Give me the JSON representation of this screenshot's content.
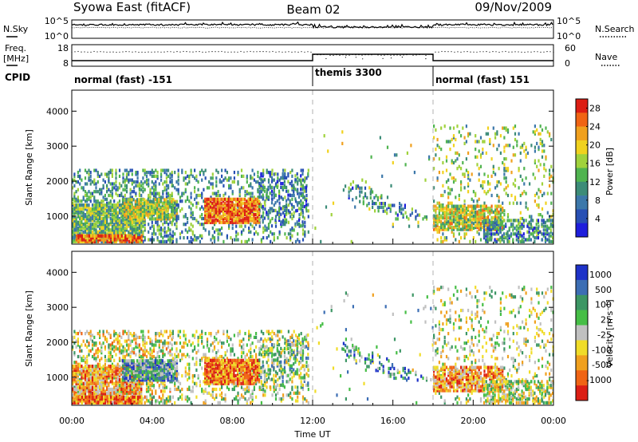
{
  "header": {
    "station": "Syowa East (fitACF)",
    "beam": "Beam 02",
    "date": "09/Nov/2009"
  },
  "top_panels": {
    "nsky_label": "N.Sky",
    "nsearch_label": "N.Search",
    "freq_label_line1": "Freq.",
    "freq_label_line2": "[MHz]",
    "nave_label": "Nave",
    "cpid_label": "CPID",
    "noise_ticks": [
      "10^5",
      "10^0"
    ],
    "freq_ticks": [
      "18",
      "8"
    ],
    "nave_ticks": [
      "60",
      "0"
    ]
  },
  "cpid_segments": [
    {
      "start": 0,
      "end": 12,
      "label": "normal (fast) -151"
    },
    {
      "start": 12,
      "end": 18,
      "label": "themis 3300"
    },
    {
      "start": 18,
      "end": 24,
      "label": "normal (fast) 151"
    }
  ],
  "colors": {
    "power_scale": [
      "#1e1edc",
      "#2850b4",
      "#3c78aa",
      "#3c8c78",
      "#50b450",
      "#a0d23c",
      "#f0d21e",
      "#f0a01e",
      "#f06414",
      "#dc1e14"
    ],
    "velocity_scale": [
      "#1e32c8",
      "#3c6eb4",
      "#3c9664",
      "#46be46",
      "#c0c0c0",
      "#f0dc28",
      "#f0a01e",
      "#f06414",
      "#dc1e14"
    ]
  },
  "chart_data": [
    {
      "type": "heatmap",
      "name": "power",
      "xlabel": "Time UT",
      "ylabel": "Slant Range [km]",
      "x_range": [
        0,
        24
      ],
      "ylim": [
        200,
        4600
      ],
      "y_ticks": [
        1000,
        2000,
        3000,
        4000
      ],
      "colorbar_label": "Power [dB]",
      "colorbar_ticks": [
        4,
        8,
        12,
        16,
        20,
        24,
        28
      ],
      "colorbar_range": [
        0,
        30
      ]
    },
    {
      "type": "heatmap",
      "name": "velocity",
      "xlabel": "Time UT",
      "ylabel": "Slant Range [km]",
      "x_range": [
        0,
        24
      ],
      "ylim": [
        200,
        4600
      ],
      "y_ticks": [
        1000,
        2000,
        3000,
        4000
      ],
      "colorbar_label": "Velocity [m s⁻¹]",
      "colorbar_ticks": [
        1000,
        500,
        100,
        25,
        -25,
        -100,
        -500,
        -1000
      ]
    }
  ],
  "x_axis": {
    "tick_labels": [
      "00:00",
      "04:00",
      "08:00",
      "12:00",
      "16:00",
      "20:00",
      "00:00"
    ],
    "label": "Time UT"
  }
}
